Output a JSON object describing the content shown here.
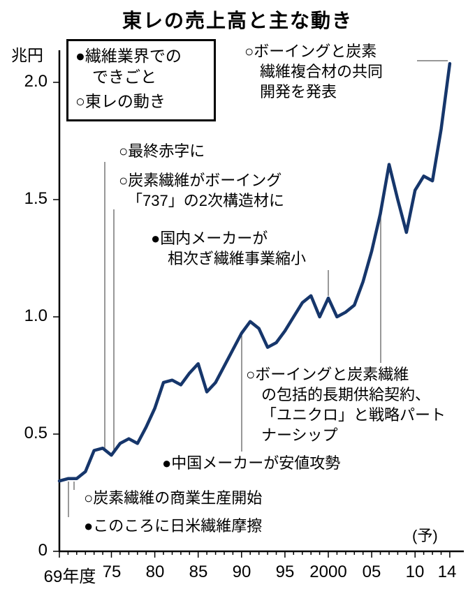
{
  "title": "東レの売上高と主な動き",
  "legend": {
    "items": [
      {
        "lines": [
          "●繊維業界での",
          "できごと"
        ]
      },
      {
        "lines": [
          "○東レの動き"
        ]
      }
    ]
  },
  "chart_data": {
    "type": "line",
    "title": "東レの売上高と主な動き",
    "unit_label": "兆円",
    "xlabel": "",
    "ylabel": "兆円",
    "ylim": [
      0,
      2.15
    ],
    "grid": false,
    "line_color": "#16366b",
    "forecast_label": "(予)",
    "x": [
      1969,
      1970,
      1971,
      1972,
      1973,
      1974,
      1975,
      1976,
      1977,
      1978,
      1979,
      1980,
      1981,
      1982,
      1983,
      1984,
      1985,
      1986,
      1987,
      1988,
      1989,
      1990,
      1991,
      1992,
      1993,
      1994,
      1995,
      1996,
      1997,
      1998,
      1999,
      2000,
      2001,
      2002,
      2003,
      2004,
      2005,
      2006,
      2007,
      2008,
      2009,
      2010,
      2011,
      2012,
      2013,
      2014
    ],
    "values": [
      0.3,
      0.31,
      0.31,
      0.34,
      0.43,
      0.44,
      0.41,
      0.46,
      0.48,
      0.46,
      0.53,
      0.61,
      0.72,
      0.73,
      0.71,
      0.76,
      0.8,
      0.68,
      0.72,
      0.79,
      0.86,
      0.93,
      0.98,
      0.95,
      0.87,
      0.89,
      0.94,
      1.0,
      1.06,
      1.09,
      1.0,
      1.08,
      1.0,
      1.02,
      1.05,
      1.15,
      1.28,
      1.44,
      1.65,
      1.5,
      1.36,
      1.54,
      1.6,
      1.58,
      1.8,
      2.08
    ],
    "y_ticks": [
      0,
      0.5,
      1.0,
      1.5,
      2.0
    ],
    "y_tick_labels": [
      "0",
      "0.5",
      "1.0",
      "1.5",
      "2.0"
    ],
    "x_tick_years": [
      1969,
      1975,
      1980,
      1985,
      1990,
      1995,
      2000,
      2005,
      2010,
      2014
    ],
    "x_tick_labels": [
      "69年度",
      "75",
      "80",
      "85",
      "90",
      "95",
      "2000",
      "05",
      "10",
      "14"
    ]
  },
  "annotations": [
    {
      "name": "boeing-joint-development",
      "lines": [
        "○ボーイングと炭素",
        "繊維複合材の共同",
        "開発を発表"
      ]
    },
    {
      "name": "net-loss",
      "lines": [
        "○最終赤字に"
      ]
    },
    {
      "name": "boeing-737-secondary",
      "lines": [
        "○炭素繊維がボーイング",
        "「737」の2次構造材に"
      ]
    },
    {
      "name": "domestic-makers-downsize",
      "lines": [
        "●国内メーカーが",
        "相次ぎ繊維事業縮小"
      ]
    },
    {
      "name": "boeing-supply-uniqlo",
      "lines": [
        "○ボーイングと炭素繊維",
        "の包括的長期供給契約、",
        "「ユニクロ」と戦略パート",
        "ナーシップ"
      ]
    },
    {
      "name": "china-makers-low-price",
      "lines": [
        "●中国メーカーが安値攻勢"
      ]
    },
    {
      "name": "carbon-fiber-commercial",
      "lines": [
        "○炭素繊維の商業生産開始"
      ]
    },
    {
      "name": "japan-us-textile-friction",
      "lines": [
        "●このころに日米繊維摩擦"
      ]
    }
  ]
}
